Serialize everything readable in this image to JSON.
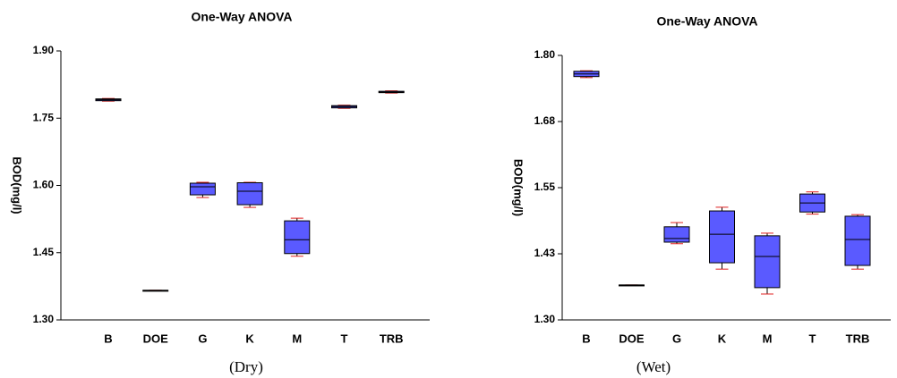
{
  "chart_data": [
    {
      "type": "box",
      "title": "One-Way ANOVA",
      "y_label": "BOD(mg/l)",
      "caption": "(Dry)",
      "categories": [
        "B",
        "DOE",
        "G",
        "K",
        "M",
        "T",
        "TRB"
      ],
      "min": [
        1.788,
        1.366,
        1.573,
        1.551,
        1.442,
        1.772,
        1.806
      ],
      "q1": [
        1.789,
        1.366,
        1.579,
        1.557,
        1.448,
        1.773,
        1.807
      ],
      "median": [
        1.791,
        1.366,
        1.597,
        1.587,
        1.479,
        1.776,
        1.808
      ],
      "q3": [
        1.793,
        1.366,
        1.605,
        1.606,
        1.521,
        1.778,
        1.81
      ],
      "max": [
        1.794,
        1.366,
        1.607,
        1.607,
        1.527,
        1.779,
        1.811
      ],
      "color": "#5a5aff",
      "whisker_color": "#e02020",
      "ylim": [
        1.3,
        1.9
      ],
      "yticks": [
        {
          "value": 1.3,
          "label": "1.30"
        },
        {
          "value": 1.45,
          "label": "1.45"
        },
        {
          "value": 1.6,
          "label": "1.60"
        },
        {
          "value": 1.75,
          "label": "1.75"
        },
        {
          "value": 1.9,
          "label": "1.90"
        }
      ]
    },
    {
      "type": "box",
      "title": "One-Way ANOVA",
      "y_label": "BOD(mg/l)",
      "caption": "(Wet)",
      "categories": [
        "B",
        "DOE",
        "G",
        "K",
        "M",
        "T",
        "TRB"
      ],
      "min": [
        1.758,
        1.366,
        1.444,
        1.396,
        1.349,
        1.5,
        1.396
      ],
      "q1": [
        1.76,
        1.366,
        1.447,
        1.408,
        1.361,
        1.504,
        1.403
      ],
      "median": [
        1.765,
        1.366,
        1.454,
        1.462,
        1.42,
        1.521,
        1.452
      ],
      "q3": [
        1.77,
        1.366,
        1.476,
        1.506,
        1.459,
        1.538,
        1.496
      ],
      "max": [
        1.771,
        1.366,
        1.484,
        1.513,
        1.464,
        1.542,
        1.499
      ],
      "color": "#5a5aff",
      "whisker_color": "#e02020",
      "ylim": [
        1.3,
        1.8
      ],
      "yticks": [
        {
          "value": 1.3,
          "label": "1.30"
        },
        {
          "value": 1.425,
          "label": "1.43"
        },
        {
          "value": 1.55,
          "label": "1.55"
        },
        {
          "value": 1.675,
          "label": "1.68"
        },
        {
          "value": 1.8,
          "label": "1.80"
        }
      ]
    }
  ]
}
